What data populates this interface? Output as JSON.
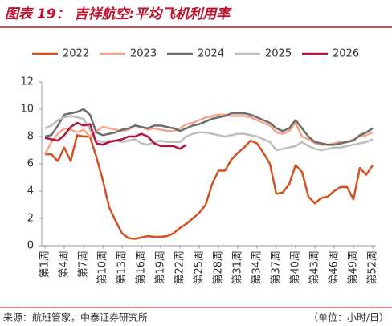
{
  "chart_data": {
    "type": "line",
    "title": "图表 19： 吉祥航空:平均飞机利用率",
    "source": "来源：航班管家，中泰证券研究所",
    "unit": "（单位：小时/日）",
    "categories": [
      "第1周",
      null,
      null,
      "第4周",
      null,
      null,
      "第7周",
      null,
      null,
      "第10周",
      null,
      null,
      "第13周",
      null,
      null,
      "第16周",
      null,
      null,
      "第19周",
      null,
      null,
      "第22周",
      null,
      null,
      "第25周",
      null,
      null,
      "第28周",
      null,
      null,
      "第31周",
      null,
      null,
      "第34周",
      null,
      null,
      "第37周",
      null,
      null,
      "第40周",
      null,
      null,
      "第43周",
      null,
      null,
      "第46周",
      null,
      null,
      "第49周",
      null,
      null,
      "第52周"
    ],
    "ylim": [
      0,
      12
    ],
    "yticks": [
      0,
      2,
      4,
      6,
      8,
      10,
      12
    ],
    "series": [
      {
        "name": "2022",
        "color": "#d4501f",
        "values": [
          6.7,
          6.7,
          6.2,
          7.2,
          6.2,
          8.1,
          8.0,
          8.0,
          6.5,
          4.8,
          2.8,
          1.8,
          0.9,
          0.55,
          0.5,
          0.6,
          0.7,
          0.65,
          0.65,
          0.7,
          0.9,
          1.3,
          1.6,
          2.0,
          2.4,
          3.0,
          4.5,
          5.5,
          5.5,
          6.3,
          6.8,
          7.2,
          7.7,
          7.5,
          6.8,
          6.0,
          3.8,
          3.9,
          4.5,
          5.9,
          5.4,
          3.6,
          3.1,
          3.5,
          3.6,
          4.0,
          4.3,
          4.3,
          3.4,
          5.7,
          5.2,
          5.9
        ]
      },
      {
        "name": "2023",
        "color": "#f4a58a",
        "values": [
          6.7,
          7.6,
          8.2,
          8.6,
          8.5,
          8.3,
          8.5,
          8.0,
          8.4,
          8.7,
          8.6,
          8.5,
          8.4,
          8.5,
          8.8,
          8.7,
          8.5,
          8.6,
          8.5,
          8.4,
          8.4,
          8.6,
          8.9,
          9.0,
          9.2,
          9.4,
          9.5,
          9.6,
          9.6,
          9.5,
          9.5,
          9.5,
          9.4,
          9.2,
          9.0,
          8.8,
          8.3,
          8.2,
          8.4,
          9.0,
          8.0,
          7.8,
          7.5,
          7.4,
          7.4,
          7.5,
          7.6,
          7.6,
          7.8,
          8.0,
          8.1,
          8.3
        ]
      },
      {
        "name": "2024",
        "color": "#6d6d6d",
        "values": [
          8.0,
          8.1,
          8.8,
          9.6,
          9.7,
          9.8,
          10.0,
          9.6,
          8.3,
          8.1,
          8.2,
          8.3,
          8.5,
          8.6,
          8.8,
          8.7,
          8.6,
          8.8,
          8.8,
          8.7,
          8.6,
          8.4,
          8.6,
          8.8,
          8.9,
          9.1,
          9.3,
          9.4,
          9.5,
          9.7,
          9.7,
          9.7,
          9.6,
          9.4,
          9.2,
          9.0,
          8.6,
          8.4,
          8.6,
          9.2,
          8.6,
          8.0,
          7.6,
          7.5,
          7.4,
          7.4,
          7.5,
          7.6,
          7.7,
          8.1,
          8.3,
          8.6
        ]
      },
      {
        "name": "2025",
        "color": "#bdbdbd",
        "values": [
          8.6,
          8.8,
          9.2,
          9.4,
          9.5,
          9.4,
          9.3,
          8.5,
          7.7,
          7.6,
          7.7,
          7.7,
          7.6,
          7.7,
          7.8,
          7.5,
          7.4,
          7.6,
          7.7,
          7.6,
          7.6,
          7.6,
          8.0,
          8.2,
          8.3,
          8.3,
          8.2,
          8.1,
          8.0,
          8.1,
          8.2,
          8.2,
          8.1,
          8.0,
          7.8,
          7.6,
          7.0,
          7.1,
          7.2,
          7.3,
          7.6,
          7.3,
          7.1,
          7.0,
          7.1,
          7.2,
          7.2,
          7.3,
          7.4,
          7.5,
          7.6,
          7.8
        ]
      },
      {
        "name": "2026",
        "color": "#b5123d",
        "values": [
          7.9,
          7.8,
          7.7,
          8.1,
          8.7,
          9.0,
          8.8,
          8.9,
          7.5,
          7.4,
          7.6,
          7.7,
          7.8,
          8.0,
          8.0,
          8.2,
          8.0,
          7.5,
          7.3,
          7.3,
          7.3,
          7.1,
          7.4,
          null,
          null,
          null,
          null,
          null,
          null,
          null,
          null,
          null,
          null,
          null,
          null,
          null,
          null,
          null,
          null,
          null,
          null,
          null,
          null,
          null,
          null,
          null,
          null,
          null,
          null,
          null,
          null,
          null
        ]
      }
    ]
  }
}
